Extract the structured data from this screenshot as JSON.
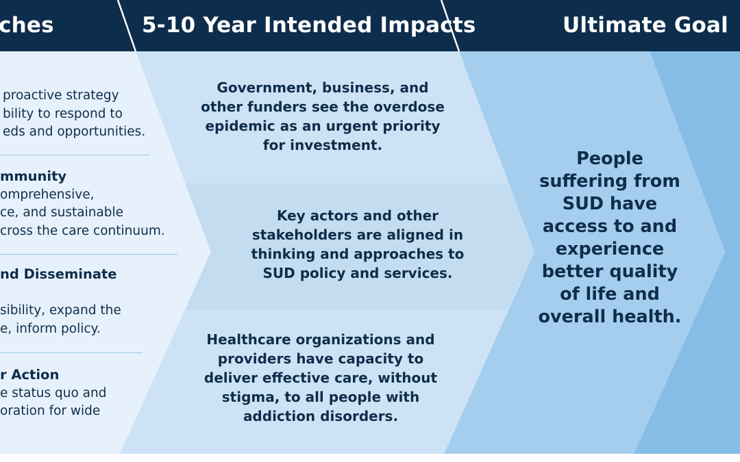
{
  "headers": {
    "approaches": "ches",
    "impacts": "5-10 Year Intended Impacts",
    "goal": "Ultimate Goal"
  },
  "approaches": [
    {
      "title_lines": [],
      "desc_lines": [
        "proactive strategy",
        "bility to respond to",
        "eds and opportunities."
      ]
    },
    {
      "title_lines": [
        "mmunity"
      ],
      "desc_lines": [
        "omprehensive,",
        "ce, and sustainable",
        "cross the care continuum."
      ]
    },
    {
      "title_lines": [
        "nd Disseminate"
      ],
      "desc_lines": [
        "",
        "sibility, expand the",
        "e, inform policy."
      ]
    },
    {
      "title_lines": [
        "r Action"
      ],
      "desc_lines": [
        "e status quo and",
        "oration for wide"
      ]
    }
  ],
  "impacts": [
    {
      "lines": [
        "Government, business, and",
        "other funders see the overdose",
        "epidemic as an urgent priority",
        "for investment."
      ]
    },
    {
      "lines": [
        "Key actors and other",
        "stakeholders are aligned in",
        "thinking and approaches to",
        "SUD policy and services."
      ]
    },
    {
      "lines": [
        "Healthcare organizations and",
        "providers have capacity to",
        "deliver effective care, without",
        "stigma, to all people with",
        "addiction disorders."
      ]
    }
  ],
  "goal": {
    "lines": [
      "People",
      "suffering from",
      "SUD have",
      "access to and",
      "experience",
      "better quality",
      "of life and",
      "overall health."
    ]
  },
  "colors": {
    "navy": "#0d2d4c",
    "left_panel": "#e6f1fb",
    "impact_panel": "#cde3f5",
    "impact_mid": "#c3dcef",
    "goal_panel": "#a5cdee",
    "goal_edge": "#86bde6",
    "divider": "#9cc6e6"
  }
}
